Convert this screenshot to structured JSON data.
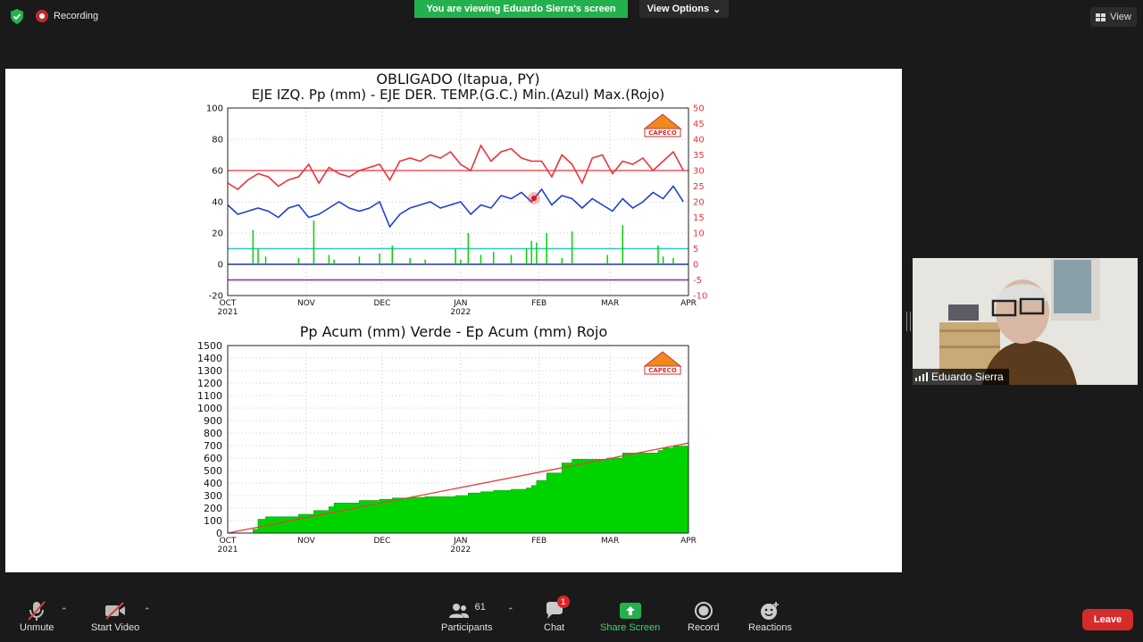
{
  "meeting": {
    "recording_label": "Recording",
    "viewing_banner": "You are viewing Eduardo Sierra's screen",
    "view_options_label": "View Options",
    "view_label": "View"
  },
  "participant_video": {
    "name": "Eduardo Sierra"
  },
  "toolbar": {
    "unmute_label": "Unmute",
    "start_video_label": "Start Video",
    "participants_label": "Participants",
    "participants_count": "61",
    "chat_label": "Chat",
    "chat_badge": "1",
    "share_label": "Share Screen",
    "record_label": "Record",
    "reactions_label": "Reactions",
    "leave_label": "Leave"
  },
  "colors": {
    "zoom_green": "#23b14d",
    "leave_red": "#d52b2b",
    "pp_green": "#00d400",
    "tmax_red": "#e8343c",
    "tmin_blue": "#1f3fd0"
  },
  "logo_text": "CAPECO",
  "chart_data": [
    {
      "type": "line",
      "title": "OBLIGADO (Itapua, PY)",
      "subtitle": "EJE IZQ. Pp (mm) - EJE DER. TEMP.(G.C.) Min.(Azul) Max.(Rojo)",
      "x_ticks": [
        "OCT",
        "NOV",
        "DEC",
        "JAN",
        "FEB",
        "MAR",
        "APR"
      ],
      "x_year_ticks": [
        "2021",
        "2022"
      ],
      "ylim_left": [
        -20,
        100
      ],
      "yticks_left": [
        100,
        80,
        60,
        40,
        20,
        0,
        -20
      ],
      "ylim_right": [
        -10,
        50
      ],
      "yticks_right": [
        50,
        45,
        40,
        35,
        30,
        25,
        20,
        15,
        10,
        5,
        0,
        -5,
        -10
      ],
      "grid": true,
      "reference_lines_right_axis": {
        "red": 30,
        "cyan": 5,
        "purple": -5
      },
      "series": [
        {
          "color": "#e8343c",
          "axis": "right",
          "x_days": [
            0,
            4,
            8,
            12,
            16,
            20,
            24,
            28,
            32,
            36,
            40,
            44,
            48,
            52,
            56,
            60,
            64,
            68,
            72,
            76,
            80,
            84,
            88,
            92,
            96,
            100,
            104,
            108,
            112,
            116,
            120,
            124,
            128,
            132,
            136,
            140,
            144,
            148,
            152,
            156,
            160,
            164,
            168,
            172,
            176,
            180
          ],
          "values": [
            26,
            24,
            27,
            29,
            28,
            25,
            27,
            28,
            32,
            26,
            31,
            29,
            28,
            30,
            31,
            32,
            27,
            33,
            34,
            33,
            35,
            34,
            36,
            32,
            30,
            38,
            33,
            36,
            37,
            34,
            33,
            33,
            28,
            35,
            32,
            26,
            34,
            35,
            29,
            33,
            32,
            34,
            30,
            33,
            36,
            30
          ]
        },
        {
          "color": "#1f3fd0",
          "axis": "right",
          "x_days": [
            0,
            4,
            8,
            12,
            16,
            20,
            24,
            28,
            32,
            36,
            40,
            44,
            48,
            52,
            56,
            60,
            64,
            68,
            72,
            76,
            80,
            84,
            88,
            92,
            96,
            100,
            104,
            108,
            112,
            116,
            120,
            124,
            128,
            132,
            136,
            140,
            144,
            148,
            152,
            156,
            160,
            164,
            168,
            172,
            176,
            180
          ],
          "values": [
            19,
            16,
            17,
            18,
            17,
            15,
            18,
            19,
            15,
            16,
            18,
            20,
            18,
            17,
            18,
            20,
            12,
            16,
            18,
            19,
            20,
            18,
            19,
            20,
            16,
            19,
            18,
            22,
            21,
            23,
            20,
            24,
            19,
            22,
            21,
            18,
            21,
            19,
            17,
            21,
            18,
            20,
            23,
            21,
            25,
            20
          ]
        },
        {
          "color": "#00d400",
          "axis": "left",
          "x_days": [
            10,
            12,
            15,
            28,
            34,
            40,
            42,
            52,
            60,
            65,
            72,
            78,
            90,
            92,
            95,
            100,
            105,
            112,
            118,
            120,
            122,
            126,
            132,
            136,
            150,
            156,
            170,
            172,
            176
          ],
          "values": [
            22,
            10,
            5,
            4,
            28,
            6,
            3,
            5,
            7,
            12,
            4,
            3,
            10,
            3,
            20,
            6,
            8,
            6,
            10,
            15,
            14,
            20,
            4,
            21,
            6,
            25,
            12,
            5,
            4
          ]
        }
      ]
    },
    {
      "type": "area",
      "title": "Pp Acum (mm) Verde - Ep Acum (mm) Rojo",
      "x_ticks": [
        "OCT",
        "NOV",
        "DEC",
        "JAN",
        "FEB",
        "MAR",
        "APR"
      ],
      "x_year_ticks": [
        "2021",
        "2022"
      ],
      "ylim": [
        0,
        1500
      ],
      "yticks": [
        1500,
        1400,
        1300,
        1200,
        1100,
        1000,
        900,
        800,
        700,
        600,
        500,
        400,
        300,
        200,
        100,
        0
      ],
      "grid": true,
      "series": [
        {
          "color": "#00d400",
          "fill": true,
          "x_days": [
            0,
            10,
            12,
            15,
            28,
            34,
            40,
            42,
            52,
            60,
            65,
            72,
            78,
            90,
            92,
            95,
            100,
            105,
            112,
            118,
            120,
            122,
            126,
            132,
            136,
            150,
            156,
            170,
            172,
            176,
            182
          ],
          "values": [
            0,
            30,
            110,
            130,
            150,
            180,
            210,
            240,
            260,
            270,
            280,
            285,
            290,
            300,
            300,
            320,
            330,
            340,
            350,
            360,
            380,
            420,
            480,
            560,
            590,
            600,
            640,
            660,
            680,
            695,
            700
          ]
        },
        {
          "color": "#e04040",
          "fill": false,
          "x_days": [
            0,
            182
          ],
          "values": [
            0,
            720
          ]
        }
      ]
    }
  ]
}
